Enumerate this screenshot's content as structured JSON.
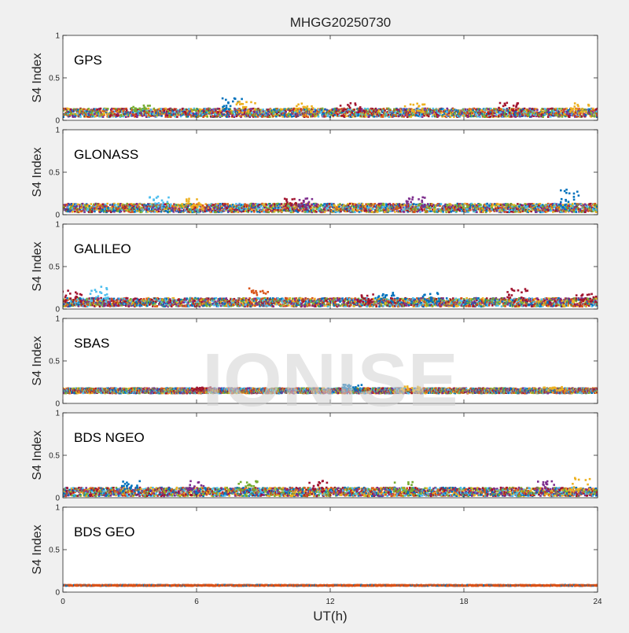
{
  "chart_data": {
    "type": "scatter",
    "title": "MHGG20250730",
    "xlabel": "UT(h)",
    "ylabel": "S4 Index",
    "xlim": [
      0,
      24
    ],
    "ylim": [
      0,
      1
    ],
    "xticks": [
      "0",
      "6",
      "12",
      "18",
      "24"
    ],
    "yticks": [
      "0",
      "0.5",
      "1"
    ],
    "grid": false,
    "watermark": "IONISE",
    "series_colors": [
      "#0072bd",
      "#d95319",
      "#edb120",
      "#7e2f8e",
      "#77ac30",
      "#4dbeee",
      "#a2142f"
    ],
    "panels": [
      {
        "label": "GPS",
        "baseline": 0.09,
        "bursts": [
          {
            "x": 3.5,
            "y": 0.18
          },
          {
            "x": 7.6,
            "y": 0.26
          },
          {
            "x": 8.2,
            "y": 0.22
          },
          {
            "x": 10.8,
            "y": 0.2
          },
          {
            "x": 12.9,
            "y": 0.24
          },
          {
            "x": 15.8,
            "y": 0.21
          },
          {
            "x": 20.0,
            "y": 0.21
          },
          {
            "x": 23.2,
            "y": 0.2
          }
        ]
      },
      {
        "label": "GLONASS",
        "baseline": 0.08,
        "bursts": [
          {
            "x": 4.3,
            "y": 0.22
          },
          {
            "x": 5.8,
            "y": 0.19
          },
          {
            "x": 10.4,
            "y": 0.19
          },
          {
            "x": 11.0,
            "y": 0.2
          },
          {
            "x": 15.8,
            "y": 0.24
          },
          {
            "x": 22.7,
            "y": 0.3
          }
        ]
      },
      {
        "label": "GALILEO",
        "baseline": 0.08,
        "bursts": [
          {
            "x": 0.4,
            "y": 0.22
          },
          {
            "x": 1.6,
            "y": 0.27
          },
          {
            "x": 8.8,
            "y": 0.25
          },
          {
            "x": 13.6,
            "y": 0.18
          },
          {
            "x": 14.6,
            "y": 0.2
          },
          {
            "x": 16.6,
            "y": 0.2
          },
          {
            "x": 20.4,
            "y": 0.24
          },
          {
            "x": 23.5,
            "y": 0.18
          }
        ]
      },
      {
        "label": "SBAS",
        "baseline": 0.15,
        "bursts": [
          {
            "x": 6.2,
            "y": 0.2
          },
          {
            "x": 13.0,
            "y": 0.22
          },
          {
            "x": 15.6,
            "y": 0.2
          },
          {
            "x": 22.0,
            "y": 0.2
          }
        ]
      },
      {
        "label": "BDS NGEO",
        "baseline": 0.07,
        "bursts": [
          {
            "x": 3.0,
            "y": 0.2
          },
          {
            "x": 6.0,
            "y": 0.2
          },
          {
            "x": 8.3,
            "y": 0.2
          },
          {
            "x": 11.5,
            "y": 0.2
          },
          {
            "x": 15.3,
            "y": 0.21
          },
          {
            "x": 21.6,
            "y": 0.21
          },
          {
            "x": 23.2,
            "y": 0.24
          }
        ]
      },
      {
        "label": "BDS GEO",
        "baseline": 0.08,
        "bursts": []
      }
    ]
  }
}
